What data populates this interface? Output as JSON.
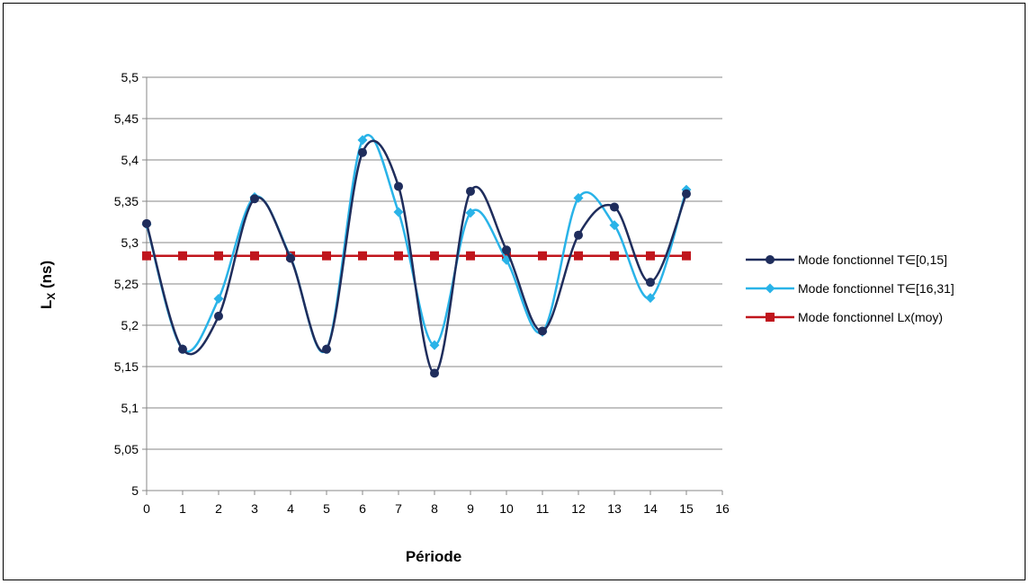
{
  "chart_data": {
    "type": "line",
    "xlabel": "Période",
    "ylabel": "L",
    "ylabel_subscript": "X",
    "ylabel_unit": " (ns)",
    "xlim": [
      0,
      16
    ],
    "ylim": [
      5,
      5.5
    ],
    "x_ticks": [
      "0",
      "1",
      "2",
      "3",
      "4",
      "5",
      "6",
      "7",
      "8",
      "9",
      "10",
      "11",
      "12",
      "13",
      "14",
      "15",
      "16"
    ],
    "y_ticks": [
      "5",
      "5,05",
      "5,1",
      "5,15",
      "5,2",
      "5,25",
      "5,3",
      "5,35",
      "5,4",
      "5,45",
      "5,5"
    ],
    "grid": true,
    "legend_position": "right",
    "x": [
      0,
      1,
      2,
      3,
      4,
      5,
      6,
      7,
      8,
      9,
      10,
      11,
      12,
      13,
      14,
      15
    ],
    "series": [
      {
        "name": "Mode fonctionnel T∈[0,15]",
        "color": "#1f2d5c",
        "marker": "circle",
        "smooth": true,
        "values": [
          5.323,
          5.171,
          5.211,
          5.353,
          5.281,
          5.171,
          5.409,
          5.368,
          5.142,
          5.362,
          5.291,
          5.193,
          5.309,
          5.343,
          5.252,
          5.359
        ]
      },
      {
        "name": "Mode fonctionnel T∈[16,31]",
        "color": "#29b3e8",
        "marker": "diamond",
        "smooth": true,
        "values": [
          5.322,
          5.171,
          5.232,
          5.355,
          5.282,
          5.171,
          5.424,
          5.337,
          5.176,
          5.336,
          5.279,
          5.192,
          5.354,
          5.321,
          5.233,
          5.364
        ]
      },
      {
        "name": "Mode fonctionnel Lx(moy)",
        "color": "#c0151c",
        "marker": "square",
        "smooth": false,
        "values": [
          5.284,
          5.284,
          5.284,
          5.284,
          5.284,
          5.284,
          5.284,
          5.284,
          5.284,
          5.284,
          5.284,
          5.284,
          5.284,
          5.284,
          5.284,
          5.284
        ]
      }
    ]
  }
}
